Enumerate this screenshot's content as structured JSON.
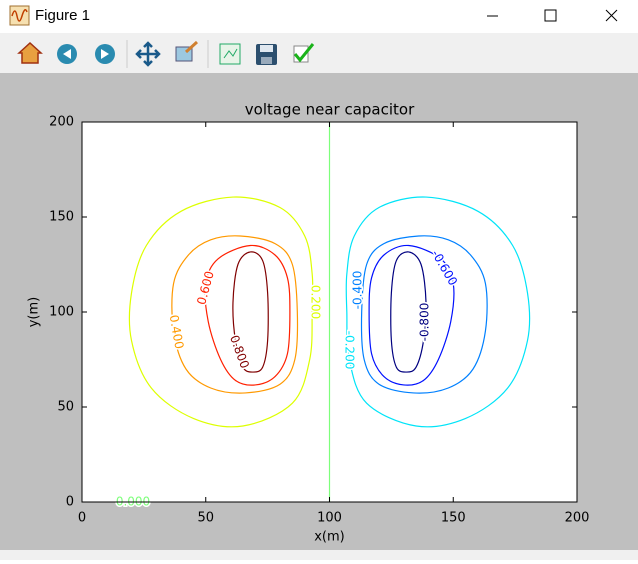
{
  "window": {
    "title": "Figure 1"
  },
  "chart_data": {
    "type": "contour",
    "title": "voltage near capacitor",
    "x_label": "x(m)",
    "y_label": "y(m)",
    "xlim": [
      0,
      200
    ],
    "ylim": [
      0,
      200
    ],
    "xticks": [
      0,
      50,
      100,
      150,
      200
    ],
    "yticks": [
      0,
      50,
      100,
      150,
      200
    ],
    "series": [
      {
        "level": {
          "value": 0.8,
          "label": "0.800"
        },
        "color": "#800000",
        "x": [
          68,
          73,
          75,
          75,
          73,
          69,
          65,
          62,
          61,
          63,
          68
        ],
        "y": [
          131.6,
          127,
          110,
          85,
          71,
          68.4,
          71,
          85,
          105,
          125,
          131.6
        ]
      },
      {
        "level": {
          "value": 0.6,
          "label": "0.600"
        },
        "color": "#ff2000",
        "x": [
          68,
          78,
          83,
          84,
          83,
          78,
          70,
          62,
          56,
          51,
          50,
          55,
          68
        ],
        "y": [
          135,
          130,
          118,
          100,
          78,
          66,
          61.6,
          64,
          75,
          95,
          115,
          128,
          135
        ]
      },
      {
        "level": {
          "value": 0.4,
          "label": "0.400"
        },
        "color": "#ff9900",
        "x": [
          64,
          78,
          85,
          87,
          86,
          80,
          66,
          52,
          42,
          37,
          37,
          43,
          52,
          64
        ],
        "y": [
          140,
          136,
          125,
          100,
          75,
          62,
          57.4,
          60,
          70,
          90,
          115,
          130,
          138,
          140
        ]
      },
      {
        "level": {
          "value": 0.2,
          "label": "0.200"
        },
        "color": "#ddff00",
        "x": [
          61,
          80,
          90,
          93,
          93,
          92,
          85,
          65,
          45,
          28,
          20,
          20,
          26,
          40,
          61
        ],
        "y": [
          160.5,
          155,
          140,
          120,
          100,
          75,
          52,
          40,
          44,
          60,
          85,
          110,
          135,
          153,
          160.5
        ]
      },
      {
        "level": {
          "value": 0,
          "label": "0.000"
        },
        "color": "#7dff7a",
        "x": [
          100,
          100
        ],
        "y": [
          0,
          200
        ]
      },
      {
        "level": {
          "value": -0.2,
          "label": "-0.200"
        },
        "color": "#00e4f8",
        "x": [
          139,
          120,
          110,
          107,
          107,
          108,
          115,
          135,
          155,
          172,
          180,
          180,
          174,
          160,
          139
        ],
        "y": [
          160.5,
          155,
          140,
          120,
          100,
          75,
          52,
          40,
          44,
          60,
          85,
          110,
          135,
          153,
          160.5
        ]
      },
      {
        "level": {
          "value": -0.4,
          "label": "-0.400"
        },
        "color": "#0080ff",
        "x": [
          136,
          122,
          115,
          113,
          114,
          120,
          134,
          148,
          158,
          163,
          163,
          157,
          148,
          136
        ],
        "y": [
          140,
          136,
          125,
          100,
          75,
          62,
          57.4,
          60,
          70,
          90,
          115,
          130,
          138,
          140
        ]
      },
      {
        "level": {
          "value": -0.6,
          "label": "-0.600"
        },
        "color": "#0010ff",
        "x": [
          132,
          122,
          117,
          116,
          117,
          122,
          130,
          138,
          144,
          149,
          150,
          145,
          132
        ],
        "y": [
          135,
          130,
          118,
          100,
          78,
          66,
          61.6,
          64,
          75,
          95,
          115,
          128,
          135
        ]
      },
      {
        "level": {
          "value": -0.8,
          "label": "-0.800"
        },
        "color": "#000080",
        "x": [
          132,
          127,
          125,
          125,
          127,
          131,
          135,
          138,
          139,
          137,
          132
        ],
        "y": [
          131.6,
          127,
          110,
          85,
          71,
          68.4,
          71,
          85,
          105,
          125,
          131.6
        ]
      }
    ]
  }
}
